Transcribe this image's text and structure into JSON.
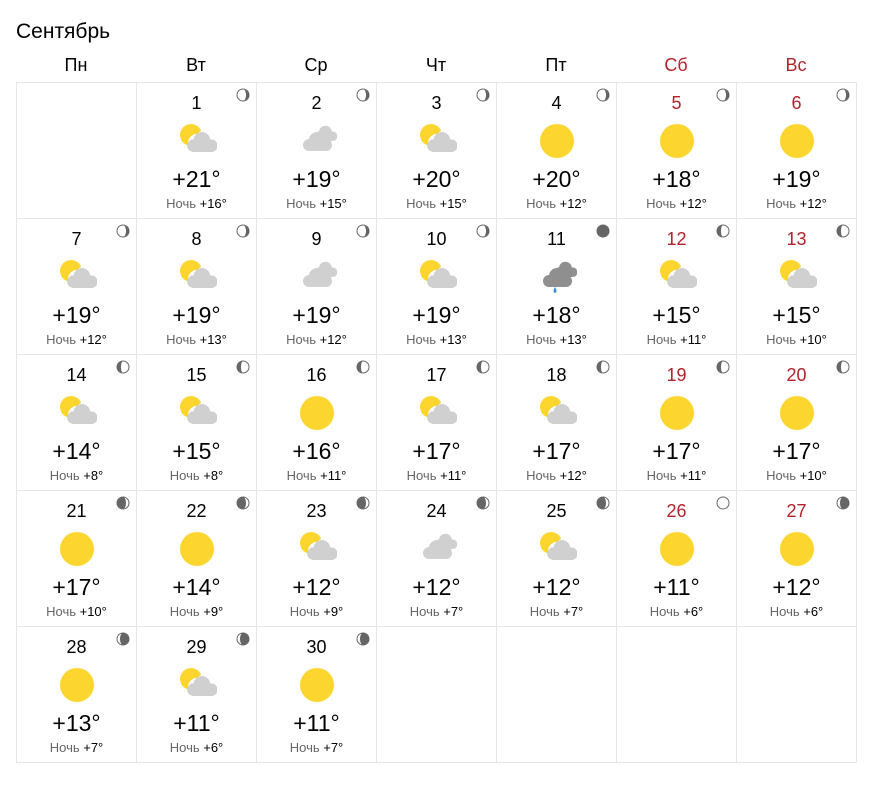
{
  "title": "Сентябрь",
  "colors": {
    "weekend": "#b3222a",
    "sun": "#fcd62f",
    "cloud": "#d0d0d0",
    "moon_dark": "#666666",
    "rain": "#3a8fd6"
  },
  "weekdays": [
    {
      "label": "Пн",
      "weekend": false
    },
    {
      "label": "Вт",
      "weekend": false
    },
    {
      "label": "Ср",
      "weekend": false
    },
    {
      "label": "Чт",
      "weekend": false
    },
    {
      "label": "Пт",
      "weekend": false
    },
    {
      "label": "Сб",
      "weekend": true
    },
    {
      "label": "Вс",
      "weekend": true
    }
  ],
  "night_label": "Ночь",
  "first_weekday_offset": 1,
  "days": [
    {
      "day": "1",
      "weather": "partly-cloudy",
      "temp": "+21°",
      "night": "+16°",
      "moon": "waning"
    },
    {
      "day": "2",
      "weather": "cloudy",
      "temp": "+19°",
      "night": "+15°",
      "moon": "waning"
    },
    {
      "day": "3",
      "weather": "partly-cloudy",
      "temp": "+20°",
      "night": "+15°",
      "moon": "waning"
    },
    {
      "day": "4",
      "weather": "sunny",
      "temp": "+20°",
      "night": "+12°",
      "moon": "waning"
    },
    {
      "day": "5",
      "weather": "sunny",
      "temp": "+18°",
      "night": "+12°",
      "moon": "waning"
    },
    {
      "day": "6",
      "weather": "sunny",
      "temp": "+19°",
      "night": "+12°",
      "moon": "waning"
    },
    {
      "day": "7",
      "weather": "partly-cloudy",
      "temp": "+19°",
      "night": "+12°",
      "moon": "waning"
    },
    {
      "day": "8",
      "weather": "partly-cloudy",
      "temp": "+19°",
      "night": "+13°",
      "moon": "waning"
    },
    {
      "day": "9",
      "weather": "cloudy",
      "temp": "+19°",
      "night": "+12°",
      "moon": "waning"
    },
    {
      "day": "10",
      "weather": "partly-cloudy",
      "temp": "+19°",
      "night": "+13°",
      "moon": "waning"
    },
    {
      "day": "11",
      "weather": "rain",
      "temp": "+18°",
      "night": "+13°",
      "moon": "new"
    },
    {
      "day": "12",
      "weather": "partly-cloudy",
      "temp": "+15°",
      "night": "+11°",
      "moon": "waxing"
    },
    {
      "day": "13",
      "weather": "partly-cloudy",
      "temp": "+15°",
      "night": "+10°",
      "moon": "waxing"
    },
    {
      "day": "14",
      "weather": "partly-cloudy",
      "temp": "+14°",
      "night": "+8°",
      "moon": "waxing"
    },
    {
      "day": "15",
      "weather": "partly-cloudy",
      "temp": "+15°",
      "night": "+8°",
      "moon": "waxing"
    },
    {
      "day": "16",
      "weather": "sunny",
      "temp": "+16°",
      "night": "+11°",
      "moon": "waxing"
    },
    {
      "day": "17",
      "weather": "partly-cloudy",
      "temp": "+17°",
      "night": "+11°",
      "moon": "waxing"
    },
    {
      "day": "18",
      "weather": "partly-cloudy",
      "temp": "+17°",
      "night": "+12°",
      "moon": "waxing"
    },
    {
      "day": "19",
      "weather": "sunny",
      "temp": "+17°",
      "night": "+11°",
      "moon": "waxing"
    },
    {
      "day": "20",
      "weather": "sunny",
      "temp": "+17°",
      "night": "+10°",
      "moon": "waxing"
    },
    {
      "day": "21",
      "weather": "sunny",
      "temp": "+17°",
      "night": "+10°",
      "moon": "waxing-gibbous"
    },
    {
      "day": "22",
      "weather": "sunny",
      "temp": "+14°",
      "night": "+9°",
      "moon": "waxing-gibbous"
    },
    {
      "day": "23",
      "weather": "partly-cloudy",
      "temp": "+12°",
      "night": "+9°",
      "moon": "waxing-gibbous"
    },
    {
      "day": "24",
      "weather": "cloudy",
      "temp": "+12°",
      "night": "+7°",
      "moon": "waxing-gibbous"
    },
    {
      "day": "25",
      "weather": "partly-cloudy",
      "temp": "+12°",
      "night": "+7°",
      "moon": "waxing-gibbous"
    },
    {
      "day": "26",
      "weather": "sunny",
      "temp": "+11°",
      "night": "+6°",
      "moon": "full"
    },
    {
      "day": "27",
      "weather": "sunny",
      "temp": "+12°",
      "night": "+6°",
      "moon": "waning-gibbous"
    },
    {
      "day": "28",
      "weather": "sunny",
      "temp": "+13°",
      "night": "+7°",
      "moon": "waning-gibbous"
    },
    {
      "day": "29",
      "weather": "partly-cloudy",
      "temp": "+11°",
      "night": "+6°",
      "moon": "waning-gibbous"
    },
    {
      "day": "30",
      "weather": "sunny",
      "temp": "+11°",
      "night": "+7°",
      "moon": "waning-gibbous"
    }
  ]
}
